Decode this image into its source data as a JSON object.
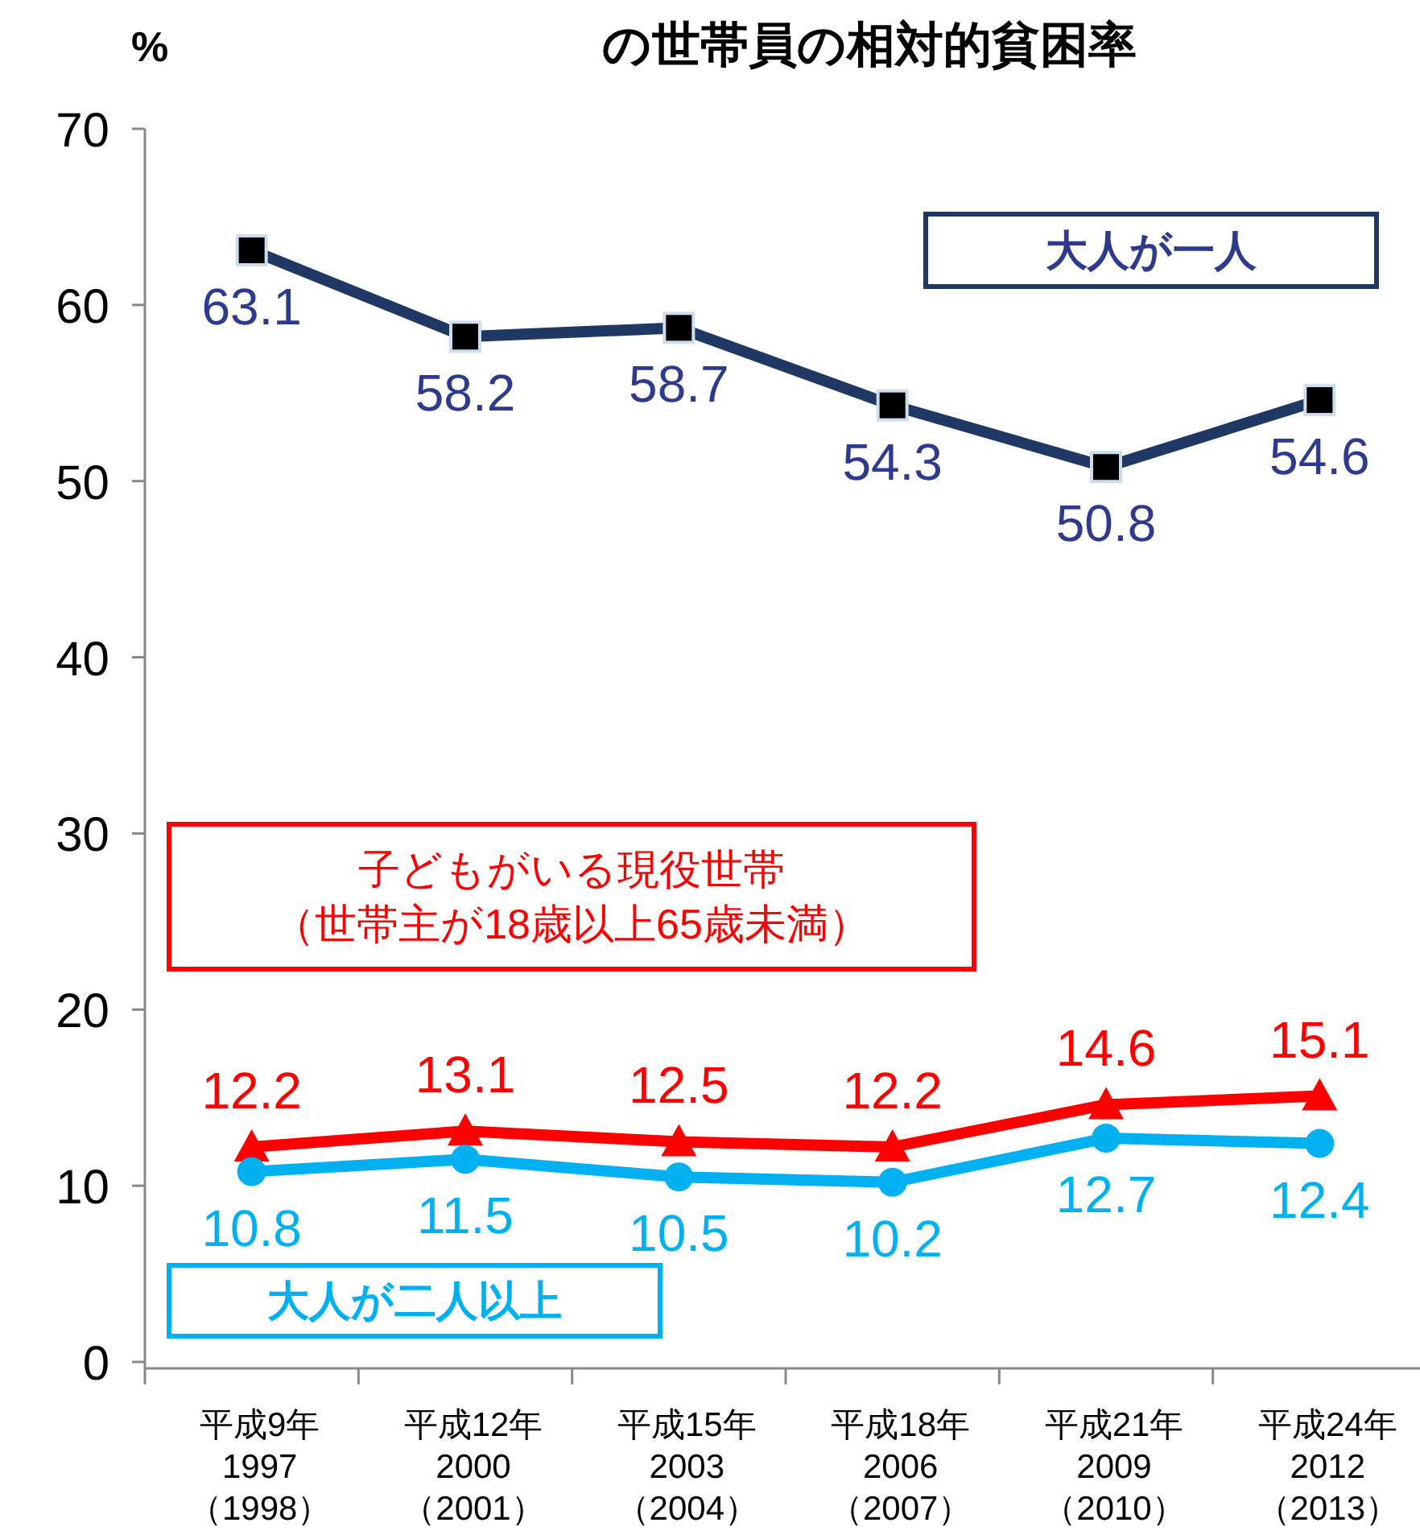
{
  "chart_data": {
    "type": "line",
    "title": "の世帯員の相対的貧困率",
    "ylabel": "%",
    "categories": [
      "平成9年\n1997\n（1998）",
      "平成12年\n2000\n（2001）",
      "平成15年\n2003\n（2004）",
      "平成18年\n2006\n（2007）",
      "平成21年\n2009\n（2010）",
      "平成24年\n2012\n（2013）"
    ],
    "series": [
      {
        "name": "大人が一人",
        "color": "#203864",
        "marker": "square",
        "values": [
          63.1,
          58.2,
          58.7,
          54.3,
          50.8,
          54.6
        ]
      },
      {
        "name": "子どもがいる現役世帯（世帯主が18歳以上65歳未満）",
        "color": "#ff0000",
        "marker": "triangle",
        "values": [
          12.2,
          13.1,
          12.5,
          12.2,
          14.6,
          15.1
        ]
      },
      {
        "name": "大人が二人以上",
        "color": "#00b0f0",
        "marker": "circle",
        "values": [
          10.8,
          11.5,
          10.5,
          10.2,
          12.7,
          12.4
        ]
      }
    ],
    "ylim": [
      0,
      70
    ],
    "yticks": [
      0,
      10,
      20,
      30,
      40,
      50,
      60,
      70
    ],
    "grid": false,
    "data_labels": true
  }
}
